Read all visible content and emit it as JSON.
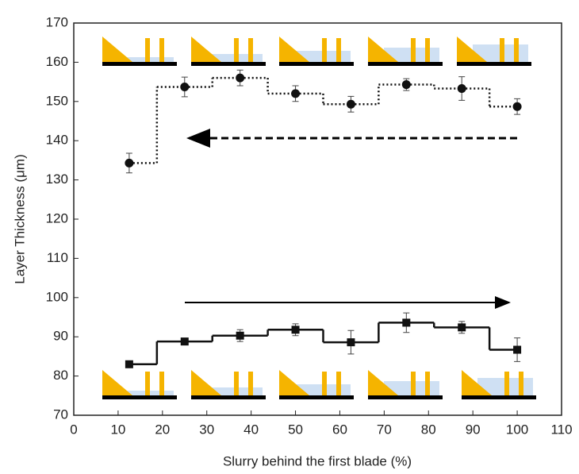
{
  "chart_data": {
    "type": "step",
    "x_label": "Slurry behind the first blade (%)",
    "y_label": "Layer Thickness (μm)",
    "xlim": [
      0,
      110
    ],
    "xticks": [
      0,
      10,
      20,
      30,
      40,
      50,
      60,
      70,
      80,
      90,
      100,
      110
    ],
    "ylim": [
      70,
      170
    ],
    "yticks": [
      70,
      80,
      90,
      100,
      110,
      120,
      130,
      140,
      150,
      160,
      170
    ],
    "series": [
      {
        "color": "#111111",
        "marker": "circle",
        "line_style": "dotted",
        "x": [
          12.5,
          25,
          37.5,
          50,
          62.5,
          75,
          87.5,
          100
        ],
        "values": [
          134.3,
          153.7,
          156,
          152,
          149.3,
          154.3,
          153.3,
          148.7
        ],
        "errors": [
          2.5,
          2.5,
          2,
          2,
          2,
          1.5,
          3,
          2
        ]
      },
      {
        "color": "#111111",
        "marker": "square",
        "line_style": "solid",
        "x": [
          12.5,
          25,
          37.5,
          50,
          62.5,
          75,
          87.5,
          100
        ],
        "values": [
          83,
          88.8,
          90.3,
          91.8,
          88.6,
          93.6,
          92.4,
          86.7
        ],
        "errors": [
          0,
          0.5,
          1.5,
          1.5,
          3,
          2.5,
          1.5,
          3
        ]
      }
    ]
  }
}
